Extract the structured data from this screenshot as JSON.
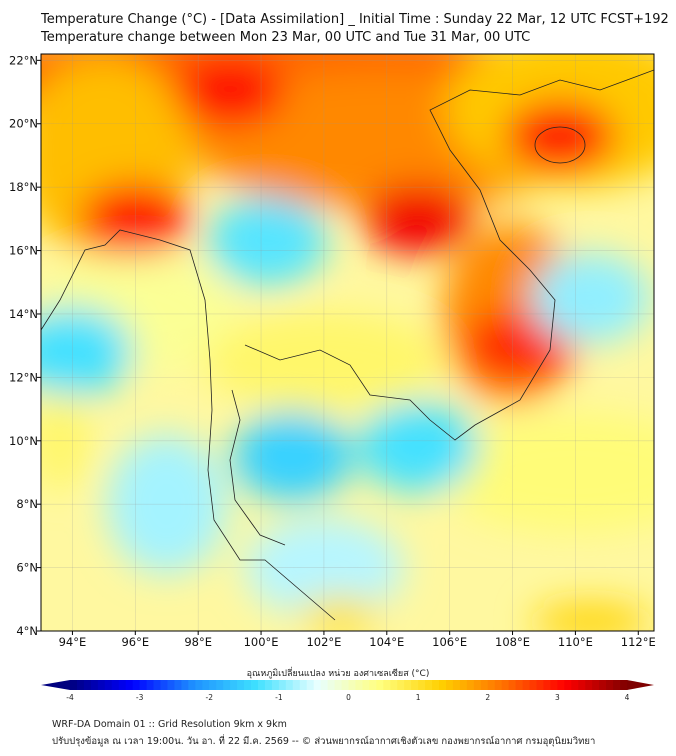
{
  "header": {
    "title": "Temperature Change (°C) - [Data Assimilation] _ Initial Time : Sunday 22 Mar, 12 UTC FCST+192",
    "subtitle": "Temperature change between Mon 23 Mar, 00 UTC and Tue 31 Mar, 00 UTC"
  },
  "chart_data": {
    "type": "heatmap",
    "title": "Temperature Change (°C)",
    "xlabel": "",
    "ylabel": "",
    "xlim": [
      93,
      112.5
    ],
    "ylim": [
      4,
      22.2
    ],
    "x_ticks": [
      "94°E",
      "96°E",
      "98°E",
      "100°E",
      "102°E",
      "104°E",
      "106°E",
      "108°E",
      "110°E",
      "112°E"
    ],
    "x_tick_values": [
      94,
      96,
      98,
      100,
      102,
      104,
      106,
      108,
      110,
      112
    ],
    "y_ticks": [
      "22°N",
      "20°N",
      "18°N",
      "16°N",
      "14°N",
      "12°N",
      "10°N",
      "8°N",
      "6°N",
      "4°N"
    ],
    "y_tick_values": [
      22,
      20,
      18,
      16,
      14,
      12,
      10,
      8,
      6,
      4
    ],
    "grid": true,
    "colorbar": {
      "label": "อุณหภูมิเปลี่ยนแปลง หน่วย องศาเซลเซียส (°C)",
      "range": [
        -4,
        4
      ],
      "ticks": [
        "-4",
        "-3",
        "-2",
        "-1",
        "0",
        "1",
        "2",
        "3",
        "4"
      ],
      "tick_values": [
        -4,
        -3,
        -2,
        -1,
        0,
        1,
        2,
        3,
        4
      ],
      "colors": [
        "#00007f",
        "#0000ff",
        "#1e90ff",
        "#3ee0ff",
        "#e8ffff",
        "#ffff80",
        "#ffd000",
        "#ff7000",
        "#ff0000",
        "#7f0000"
      ]
    },
    "features": [
      {
        "lon": 99,
        "lat": 21,
        "value": 3.0
      },
      {
        "lon": 105,
        "lat": 17,
        "value": 3.2
      },
      {
        "lon": 109.5,
        "lat": 19.6,
        "value": 3.0
      },
      {
        "lon": 96,
        "lat": 17,
        "value": 3.0
      },
      {
        "lon": 108.2,
        "lat": 13,
        "value": 2.8
      },
      {
        "lon": 101,
        "lat": 9.5,
        "value": -1.5
      },
      {
        "lon": 105,
        "lat": 9.8,
        "value": -1.3
      },
      {
        "lon": 94,
        "lat": 12.8,
        "value": -1.3
      },
      {
        "lon": 100.2,
        "lat": 16.3,
        "value": -1.2
      },
      {
        "lon": 110.5,
        "lat": 14.5,
        "value": -0.9
      }
    ]
  },
  "footer": {
    "line1": "WRF-DA Domain 01 :: Grid Resolution 9km x 9km",
    "line2": "ปรับปรุงข้อมูล ณ เวลา 19:00น. วัน อา. ที่ 22 มี.ค. 2569 -- © ส่วนพยากรณ์อากาศเชิงตัวเลข กองพยากรณ์อากาศ กรมอุตุนิยมวิทยา"
  }
}
